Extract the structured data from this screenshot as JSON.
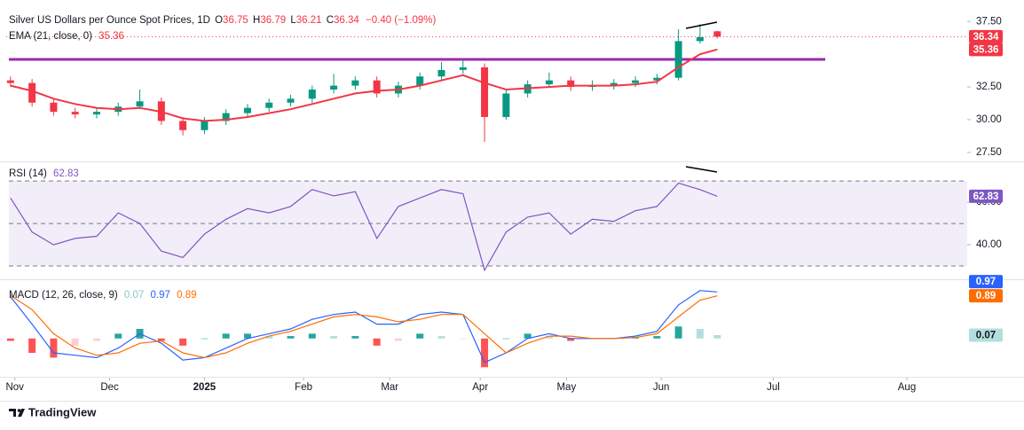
{
  "chart_data": [
    {
      "type": "candlestick",
      "title": "Silver US Dollars per Ounce Spot Prices, 1D",
      "ohlc": [
        {
          "name": "O",
          "value": 36.75
        },
        {
          "name": "H",
          "value": 36.79
        },
        {
          "name": "L",
          "value": 36.21
        },
        {
          "name": "C",
          "value": 36.34
        }
      ],
      "change": "−0.40 (−1.09%)",
      "x": [
        0,
        5,
        10,
        15,
        20,
        25,
        30,
        35,
        40,
        45,
        50,
        55,
        60,
        65,
        70,
        75,
        80,
        85,
        90,
        95,
        100,
        105,
        110,
        115,
        120,
        125,
        130,
        135,
        140,
        145,
        150,
        155,
        160,
        164
      ],
      "open": [
        33.0,
        32.8,
        31.3,
        30.6,
        30.4,
        30.6,
        31.0,
        31.4,
        29.9,
        29.2,
        29.9,
        30.5,
        30.9,
        31.3,
        31.6,
        32.3,
        32.6,
        33.0,
        32.0,
        32.6,
        33.3,
        33.8,
        34.0,
        30.2,
        32.0,
        32.7,
        33.0,
        32.5,
        32.6,
        32.8,
        33.0,
        33.2,
        36.0,
        36.75
      ],
      "high": [
        33.3,
        33.1,
        31.6,
        30.9,
        30.9,
        31.3,
        32.3,
        31.7,
        30.2,
        30.2,
        30.8,
        31.2,
        31.6,
        31.9,
        32.6,
        33.5,
        33.3,
        33.3,
        32.9,
        33.6,
        34.4,
        34.6,
        34.3,
        32.3,
        33.0,
        33.6,
        33.3,
        33.0,
        33.1,
        33.3,
        33.5,
        36.9,
        37.3,
        36.79
      ],
      "low": [
        32.5,
        31.0,
        30.3,
        30.1,
        30.1,
        30.3,
        30.8,
        29.6,
        28.8,
        28.9,
        29.6,
        30.2,
        30.6,
        31.0,
        31.3,
        32.0,
        32.3,
        31.7,
        31.7,
        32.3,
        33.0,
        33.5,
        28.3,
        30.0,
        31.7,
        32.5,
        32.2,
        32.2,
        32.3,
        32.5,
        32.7,
        33.0,
        35.8,
        36.21
      ],
      "close": [
        32.8,
        31.3,
        30.6,
        30.4,
        30.6,
        31.0,
        31.4,
        29.9,
        29.2,
        29.9,
        30.5,
        30.9,
        31.3,
        31.6,
        32.3,
        32.6,
        33.0,
        32.0,
        32.6,
        33.3,
        33.8,
        34.0,
        30.2,
        32.0,
        32.7,
        33.0,
        32.5,
        32.6,
        32.8,
        33.0,
        33.2,
        36.0,
        36.3,
        36.34
      ],
      "up_color": "#089981",
      "down_color": "#f23645",
      "ema": {
        "name": "EMA (21, close, 0)",
        "color": "#f23645",
        "last": 35.36,
        "values": [
          32.6,
          32.2,
          31.6,
          31.2,
          30.9,
          30.8,
          30.9,
          30.6,
          30.1,
          29.9,
          30.0,
          30.2,
          30.5,
          30.8,
          31.2,
          31.6,
          32.0,
          32.2,
          32.3,
          32.6,
          33.0,
          33.4,
          32.8,
          32.3,
          32.4,
          32.5,
          32.6,
          32.6,
          32.6,
          32.7,
          32.9,
          34.0,
          35.0,
          35.36
        ]
      },
      "last_price": 36.34,
      "hline": {
        "value": 34.6,
        "color": "#9c27b0"
      },
      "xlim": [
        -1,
        222
      ],
      "ylim": [
        26.95,
        38.6
      ],
      "yticks": [
        {
          "value": 37.5,
          "label": "37.50"
        },
        {
          "value": 32.5,
          "label": "32.50"
        },
        {
          "value": 30,
          "label": "30.00"
        },
        {
          "value": 27.5,
          "label": "27.50"
        }
      ]
    },
    {
      "type": "line",
      "title": "RSI (14)",
      "x": [
        0,
        5,
        10,
        15,
        20,
        25,
        30,
        35,
        40,
        45,
        50,
        55,
        60,
        65,
        70,
        75,
        80,
        85,
        90,
        95,
        100,
        105,
        110,
        115,
        120,
        125,
        130,
        135,
        140,
        145,
        150,
        155,
        160,
        164
      ],
      "series": [
        {
          "color": "#7e57c2",
          "values": [
            62,
            46,
            40,
            43,
            44,
            55,
            50,
            37,
            34,
            45,
            52,
            57,
            55,
            58,
            66,
            63,
            65,
            43,
            58,
            62,
            66,
            64,
            28,
            46,
            53,
            55,
            45,
            52,
            51,
            56,
            58,
            69,
            66,
            62.83
          ]
        }
      ],
      "last": 62.83,
      "levels": [
        70,
        50,
        30
      ],
      "band": [
        30,
        70
      ],
      "xlim": [
        -1,
        222
      ],
      "ylim": [
        25,
        78
      ],
      "yticks": [
        {
          "value": 60,
          "label": "60.00"
        },
        {
          "value": 40,
          "label": "40.00"
        }
      ]
    },
    {
      "type": "macd",
      "title": "MACD (12, 26, close, 9)",
      "x": [
        0,
        5,
        10,
        15,
        20,
        25,
        30,
        35,
        40,
        45,
        50,
        55,
        60,
        65,
        70,
        75,
        80,
        85,
        90,
        95,
        100,
        105,
        110,
        115,
        120,
        125,
        130,
        135,
        140,
        145,
        150,
        155,
        160,
        164
      ],
      "histogram": {
        "colors": [
          "#26a69a",
          "#b2dfdb",
          "#ff5252",
          "#ffcdd2"
        ],
        "last": 0.07,
        "values": [
          -0.05,
          -0.3,
          -0.4,
          -0.15,
          -0.05,
          0.1,
          0.2,
          -0.05,
          -0.15,
          0.0,
          0.1,
          0.1,
          0.05,
          0.05,
          0.1,
          0.05,
          0.05,
          -0.15,
          -0.05,
          0.1,
          0.05,
          0.0,
          -0.6,
          0.0,
          0.1,
          0.05,
          -0.05,
          0.0,
          0.0,
          0.03,
          0.05,
          0.25,
          0.2,
          0.07
        ]
      },
      "macd": {
        "color": "#2962ff",
        "last": 0.97,
        "values": [
          0.87,
          0.3,
          -0.3,
          -0.35,
          -0.4,
          -0.2,
          0.1,
          -0.1,
          -0.45,
          -0.4,
          -0.2,
          0.0,
          0.1,
          0.2,
          0.4,
          0.5,
          0.55,
          0.3,
          0.3,
          0.5,
          0.55,
          0.5,
          -0.5,
          -0.3,
          0.0,
          0.1,
          0.0,
          0.0,
          0.0,
          0.05,
          0.15,
          0.7,
          1.0,
          0.97
        ]
      },
      "signal": {
        "color": "#ff6d00",
        "last": 0.89,
        "values": [
          0.9,
          0.6,
          0.1,
          -0.2,
          -0.35,
          -0.3,
          -0.1,
          -0.05,
          -0.3,
          -0.4,
          -0.3,
          -0.1,
          0.05,
          0.15,
          0.3,
          0.45,
          0.5,
          0.45,
          0.35,
          0.4,
          0.5,
          0.5,
          0.1,
          -0.3,
          -0.1,
          0.05,
          0.05,
          0.0,
          0.0,
          0.02,
          0.1,
          0.45,
          0.8,
          0.89
        ]
      },
      "xlim": [
        -1,
        222
      ],
      "ylim": [
        -0.8,
        1.18
      ],
      "xticks": [
        {
          "value": 1,
          "label": "Nov"
        },
        {
          "value": 23,
          "label": "Dec"
        },
        {
          "value": 45,
          "label": "2025"
        },
        {
          "value": 68,
          "label": "Feb"
        },
        {
          "value": 88,
          "label": "Mar"
        },
        {
          "value": 109,
          "label": "Apr"
        },
        {
          "value": 129,
          "label": "May"
        },
        {
          "value": 151,
          "label": "Jun"
        },
        {
          "value": 177,
          "label": "Jul"
        },
        {
          "value": 208,
          "label": "Aug"
        }
      ]
    }
  ],
  "footer": {
    "brand": "TradingView"
  }
}
